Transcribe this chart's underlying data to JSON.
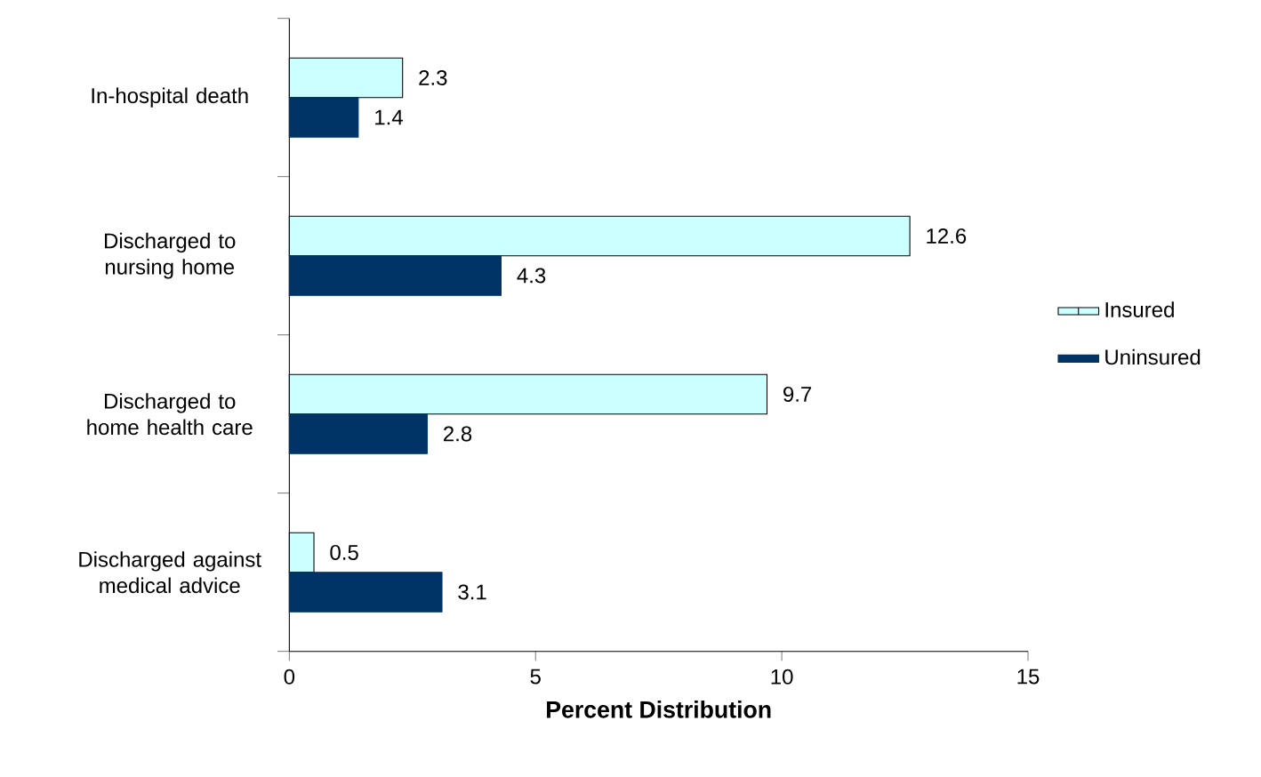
{
  "chart_data": {
    "type": "bar",
    "orientation": "horizontal",
    "xlabel": "Percent Distribution",
    "categories": [
      "In-hospital death",
      "Discharged to nursing home",
      "Discharged to home health care",
      "Discharged against medical advice"
    ],
    "series": [
      {
        "name": "Insured",
        "color": "#ccffff",
        "values": [
          2.3,
          12.6,
          9.7,
          0.5
        ]
      },
      {
        "name": "Uninsured",
        "color": "#003366",
        "values": [
          1.4,
          4.3,
          2.8,
          3.1
        ]
      }
    ],
    "xlim": [
      0,
      15
    ],
    "xticks": [
      0,
      5,
      10,
      15
    ],
    "data_labels": true,
    "legend": "right",
    "grid": false
  }
}
